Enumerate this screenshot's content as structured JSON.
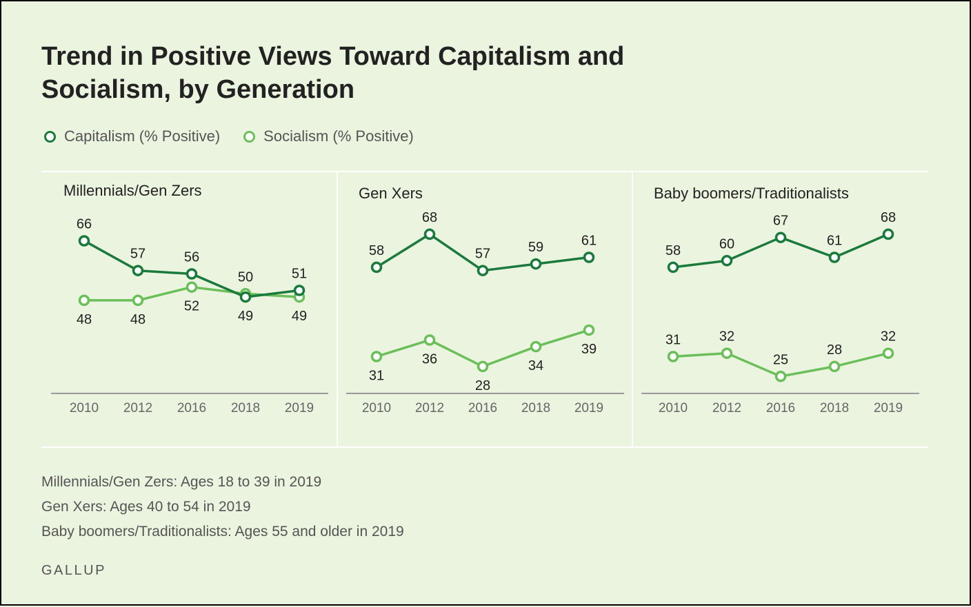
{
  "title_line1": "Trend in Positive Views Toward Capitalism and",
  "title_line2": "Socialism, by Generation",
  "legend": {
    "capitalism": "Capitalism (% Positive)",
    "socialism": "Socialism (% Positive)"
  },
  "colors": {
    "capitalism": "#1a7a3c",
    "socialism": "#6bbf59",
    "background": "#eaf4df"
  },
  "chart_data": [
    {
      "type": "line",
      "title": "Millennials/Gen Zers",
      "categories": [
        "2010",
        "2012",
        "2016",
        "2018",
        "2019"
      ],
      "series": [
        {
          "name": "Capitalism (% Positive)",
          "values": [
            66,
            57,
            56,
            49,
            51
          ]
        },
        {
          "name": "Socialism (% Positive)",
          "values": [
            48,
            48,
            52,
            50,
            49
          ]
        }
      ],
      "ylim": [
        20,
        75
      ]
    },
    {
      "type": "line",
      "title": "Gen Xers",
      "categories": [
        "2010",
        "2012",
        "2016",
        "2018",
        "2019"
      ],
      "series": [
        {
          "name": "Capitalism (% Positive)",
          "values": [
            58,
            68,
            57,
            59,
            61
          ]
        },
        {
          "name": "Socialism (% Positive)",
          "values": [
            31,
            36,
            28,
            34,
            39
          ]
        }
      ],
      "ylim": [
        20,
        75
      ]
    },
    {
      "type": "line",
      "title": "Baby boomers/Traditionalists",
      "categories": [
        "2010",
        "2012",
        "2016",
        "2018",
        "2019"
      ],
      "series": [
        {
          "name": "Capitalism (% Positive)",
          "values": [
            58,
            60,
            67,
            61,
            68
          ]
        },
        {
          "name": "Socialism (% Positive)",
          "values": [
            31,
            32,
            25,
            28,
            32
          ]
        }
      ],
      "ylim": [
        20,
        75
      ]
    }
  ],
  "notes": [
    "Millennials/Gen Zers: Ages 18 to 39 in 2019",
    "Gen Xers: Ages 40 to 54 in 2019",
    "Baby boomers/Traditionalists: Ages 55 and older in 2019"
  ],
  "source": "GALLUP"
}
